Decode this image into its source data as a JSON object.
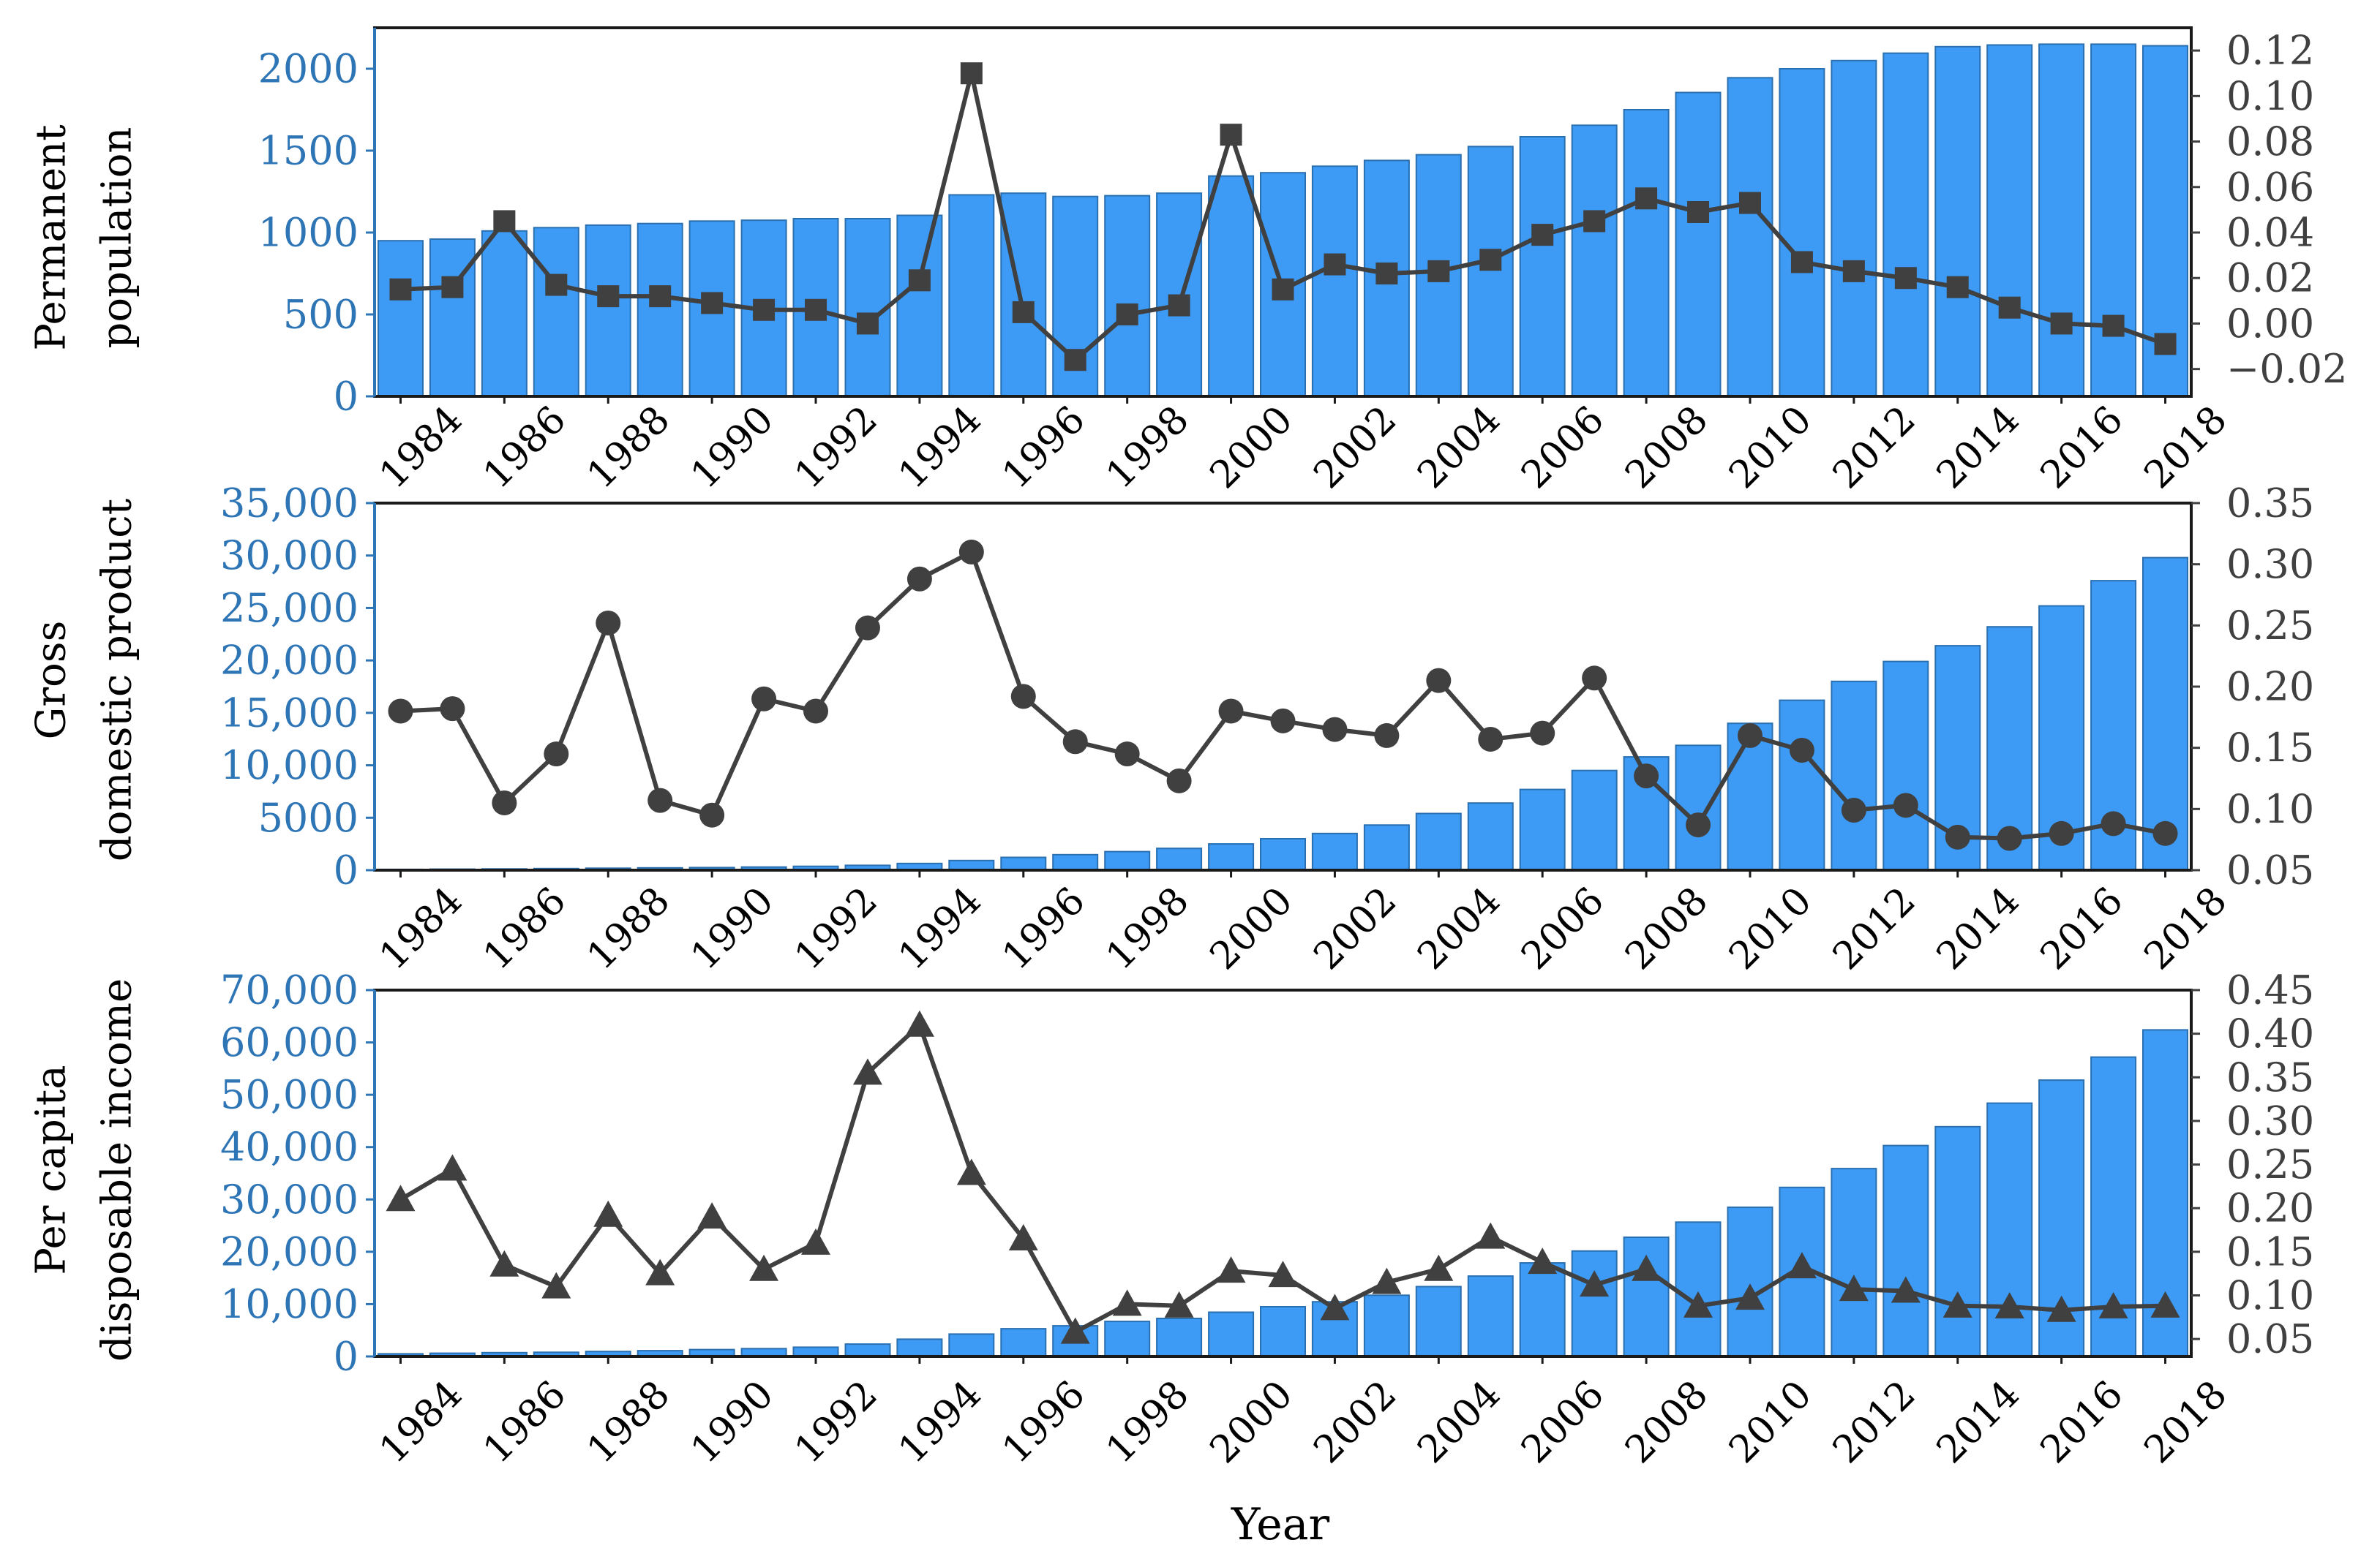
{
  "colors": {
    "bar_fill": "#3d9bf5",
    "bar_stroke": "#2a6fb0",
    "left_axis_text": "#2e75b6",
    "line": "#404040",
    "right_axis_text": "#404040",
    "frame": "#1a1a1a",
    "text": "#000000"
  },
  "xlabel": "Year",
  "chart_data": [
    {
      "type": "bar+line",
      "ylabel_lines": [
        "Permanent",
        "population"
      ],
      "categories": [
        "1984",
        "1985",
        "1986",
        "1987",
        "1988",
        "1989",
        "1990",
        "1991",
        "1992",
        "1993",
        "1994",
        "1995",
        "1996",
        "1997",
        "1998",
        "1999",
        "2000",
        "2001",
        "2002",
        "2003",
        "2004",
        "2005",
        "2006",
        "2007",
        "2008",
        "2009",
        "2010",
        "2011",
        "2012",
        "2013",
        "2014",
        "2015",
        "2016",
        "2017",
        "2018"
      ],
      "xtick_labels": [
        "1984",
        "1986",
        "1988",
        "1990",
        "1992",
        "1994",
        "1996",
        "1998",
        "2000",
        "2002",
        "2004",
        "2006",
        "2008",
        "2010",
        "2012",
        "2014",
        "2016",
        "2018"
      ],
      "bar_values": [
        950,
        960,
        1010,
        1030,
        1045,
        1055,
        1070,
        1075,
        1085,
        1085,
        1105,
        1230,
        1240,
        1220,
        1225,
        1240,
        1345,
        1365,
        1405,
        1440,
        1475,
        1525,
        1585,
        1655,
        1750,
        1855,
        1945,
        2000,
        2050,
        2095,
        2135,
        2145,
        2150,
        2150,
        2140
      ],
      "line_marker": "square",
      "line_values": [
        0.015,
        0.016,
        0.045,
        0.017,
        0.012,
        0.012,
        0.009,
        0.006,
        0.006,
        0.0,
        0.019,
        0.11,
        0.005,
        -0.016,
        0.004,
        0.008,
        0.083,
        0.015,
        0.026,
        0.022,
        0.023,
        0.028,
        0.039,
        0.045,
        0.055,
        0.049,
        0.053,
        0.027,
        0.023,
        0.02,
        0.016,
        0.007,
        0.0,
        -0.001,
        -0.009
      ],
      "left_ylim": [
        0,
        2250
      ],
      "left_ticks": [
        "0",
        "500",
        "1000",
        "1500",
        "2000"
      ],
      "left_tick_values": [
        0,
        500,
        1000,
        1500,
        2000
      ],
      "right_ylim": [
        -0.032,
        0.13
      ],
      "right_ticks": [
        "−0.02",
        "0.00",
        "0.02",
        "0.04",
        "0.06",
        "0.08",
        "0.10",
        "0.12"
      ],
      "right_tick_values": [
        -0.02,
        0.0,
        0.02,
        0.04,
        0.06,
        0.08,
        0.1,
        0.12
      ]
    },
    {
      "type": "bar+line",
      "ylabel_lines": [
        "Gross",
        "domestic product"
      ],
      "categories": [
        "1984",
        "1985",
        "1986",
        "1987",
        "1988",
        "1989",
        "1990",
        "1991",
        "1992",
        "1993",
        "1994",
        "1995",
        "1996",
        "1997",
        "1998",
        "1999",
        "2000",
        "2001",
        "2002",
        "2003",
        "2004",
        "2005",
        "2006",
        "2007",
        "2008",
        "2009",
        "2010",
        "2011",
        "2012",
        "2013",
        "2014",
        "2015",
        "2016",
        "2017",
        "2018"
      ],
      "xtick_labels": [
        "1984",
        "1986",
        "1988",
        "1990",
        "1992",
        "1994",
        "1996",
        "1998",
        "2000",
        "2002",
        "2004",
        "2006",
        "2008",
        "2010",
        "2012",
        "2014",
        "2016",
        "2018"
      ],
      "bar_values": [
        80,
        100,
        120,
        150,
        190,
        220,
        250,
        300,
        370,
        460,
        640,
        920,
        1220,
        1480,
        1770,
        2080,
        2500,
        3000,
        3500,
        4300,
        5400,
        6400,
        7700,
        9500,
        10800,
        11900,
        14000,
        16200,
        18000,
        19900,
        21400,
        23200,
        25200,
        27600,
        29800
      ],
      "line_marker": "circle",
      "line_values": [
        0.18,
        0.182,
        0.105,
        0.145,
        0.252,
        0.107,
        0.095,
        0.19,
        0.18,
        0.248,
        0.288,
        0.31,
        0.192,
        0.155,
        0.145,
        0.123,
        0.18,
        0.172,
        0.165,
        0.16,
        0.205,
        0.157,
        0.162,
        0.207,
        0.127,
        0.087,
        0.16,
        0.148,
        0.099,
        0.103,
        0.077,
        0.076,
        0.08,
        0.088,
        0.08
      ],
      "left_ylim": [
        0,
        35000
      ],
      "left_ticks": [
        "0",
        "5000",
        "10,000",
        "15,000",
        "20,000",
        "25,000",
        "30,000",
        "35,000"
      ],
      "left_tick_values": [
        0,
        5000,
        10000,
        15000,
        20000,
        25000,
        30000,
        35000
      ],
      "right_ylim": [
        0.05,
        0.35
      ],
      "right_ticks": [
        "0.05",
        "0.10",
        "0.15",
        "0.20",
        "0.25",
        "0.30",
        "0.35"
      ],
      "right_tick_values": [
        0.05,
        0.1,
        0.15,
        0.2,
        0.25,
        0.3,
        0.35
      ]
    },
    {
      "type": "bar+line",
      "ylabel_lines": [
        "Per capita",
        "disposable income"
      ],
      "categories": [
        "1984",
        "1985",
        "1986",
        "1987",
        "1988",
        "1989",
        "1990",
        "1991",
        "1992",
        "1993",
        "1994",
        "1995",
        "1996",
        "1997",
        "1998",
        "1999",
        "2000",
        "2001",
        "2002",
        "2003",
        "2004",
        "2005",
        "2006",
        "2007",
        "2008",
        "2009",
        "2010",
        "2011",
        "2012",
        "2013",
        "2014",
        "2015",
        "2016",
        "2017",
        "2018"
      ],
      "xtick_labels": [
        "1984",
        "1986",
        "1988",
        "1990",
        "1992",
        "1994",
        "1996",
        "1998",
        "2000",
        "2002",
        "2004",
        "2006",
        "2008",
        "2010",
        "2012",
        "2014",
        "2016",
        "2018"
      ],
      "bar_values": [
        500,
        620,
        720,
        800,
        950,
        1110,
        1320,
        1500,
        1760,
        2360,
        3300,
        4270,
        5300,
        5860,
        6690,
        7270,
        8460,
        9500,
        10450,
        11700,
        13340,
        15360,
        17870,
        20150,
        22780,
        25670,
        28500,
        32300,
        35900,
        40300,
        43900,
        48400,
        52800,
        57200,
        62400
      ],
      "line_marker": "triangle",
      "line_values": [
        0.21,
        0.245,
        0.135,
        0.11,
        0.192,
        0.125,
        0.19,
        0.13,
        0.16,
        0.355,
        0.41,
        0.24,
        0.165,
        0.058,
        0.09,
        0.088,
        0.128,
        0.123,
        0.085,
        0.115,
        0.13,
        0.167,
        0.138,
        0.112,
        0.13,
        0.088,
        0.097,
        0.133,
        0.107,
        0.105,
        0.088,
        0.087,
        0.083,
        0.087,
        0.088
      ],
      "left_ylim": [
        0,
        70000
      ],
      "left_ticks": [
        "0",
        "10,000",
        "20,000",
        "30,000",
        "40,000",
        "50,000",
        "60,000",
        "70,000"
      ],
      "left_tick_values": [
        0,
        10000,
        20000,
        30000,
        40000,
        50000,
        60000,
        70000
      ],
      "right_ylim": [
        0.03,
        0.45
      ],
      "right_ticks": [
        "0.05",
        "0.10",
        "0.15",
        "0.20",
        "0.25",
        "0.30",
        "0.35",
        "0.40",
        "0.45"
      ],
      "right_tick_values": [
        0.05,
        0.1,
        0.15,
        0.2,
        0.25,
        0.3,
        0.35,
        0.4,
        0.45
      ]
    }
  ]
}
